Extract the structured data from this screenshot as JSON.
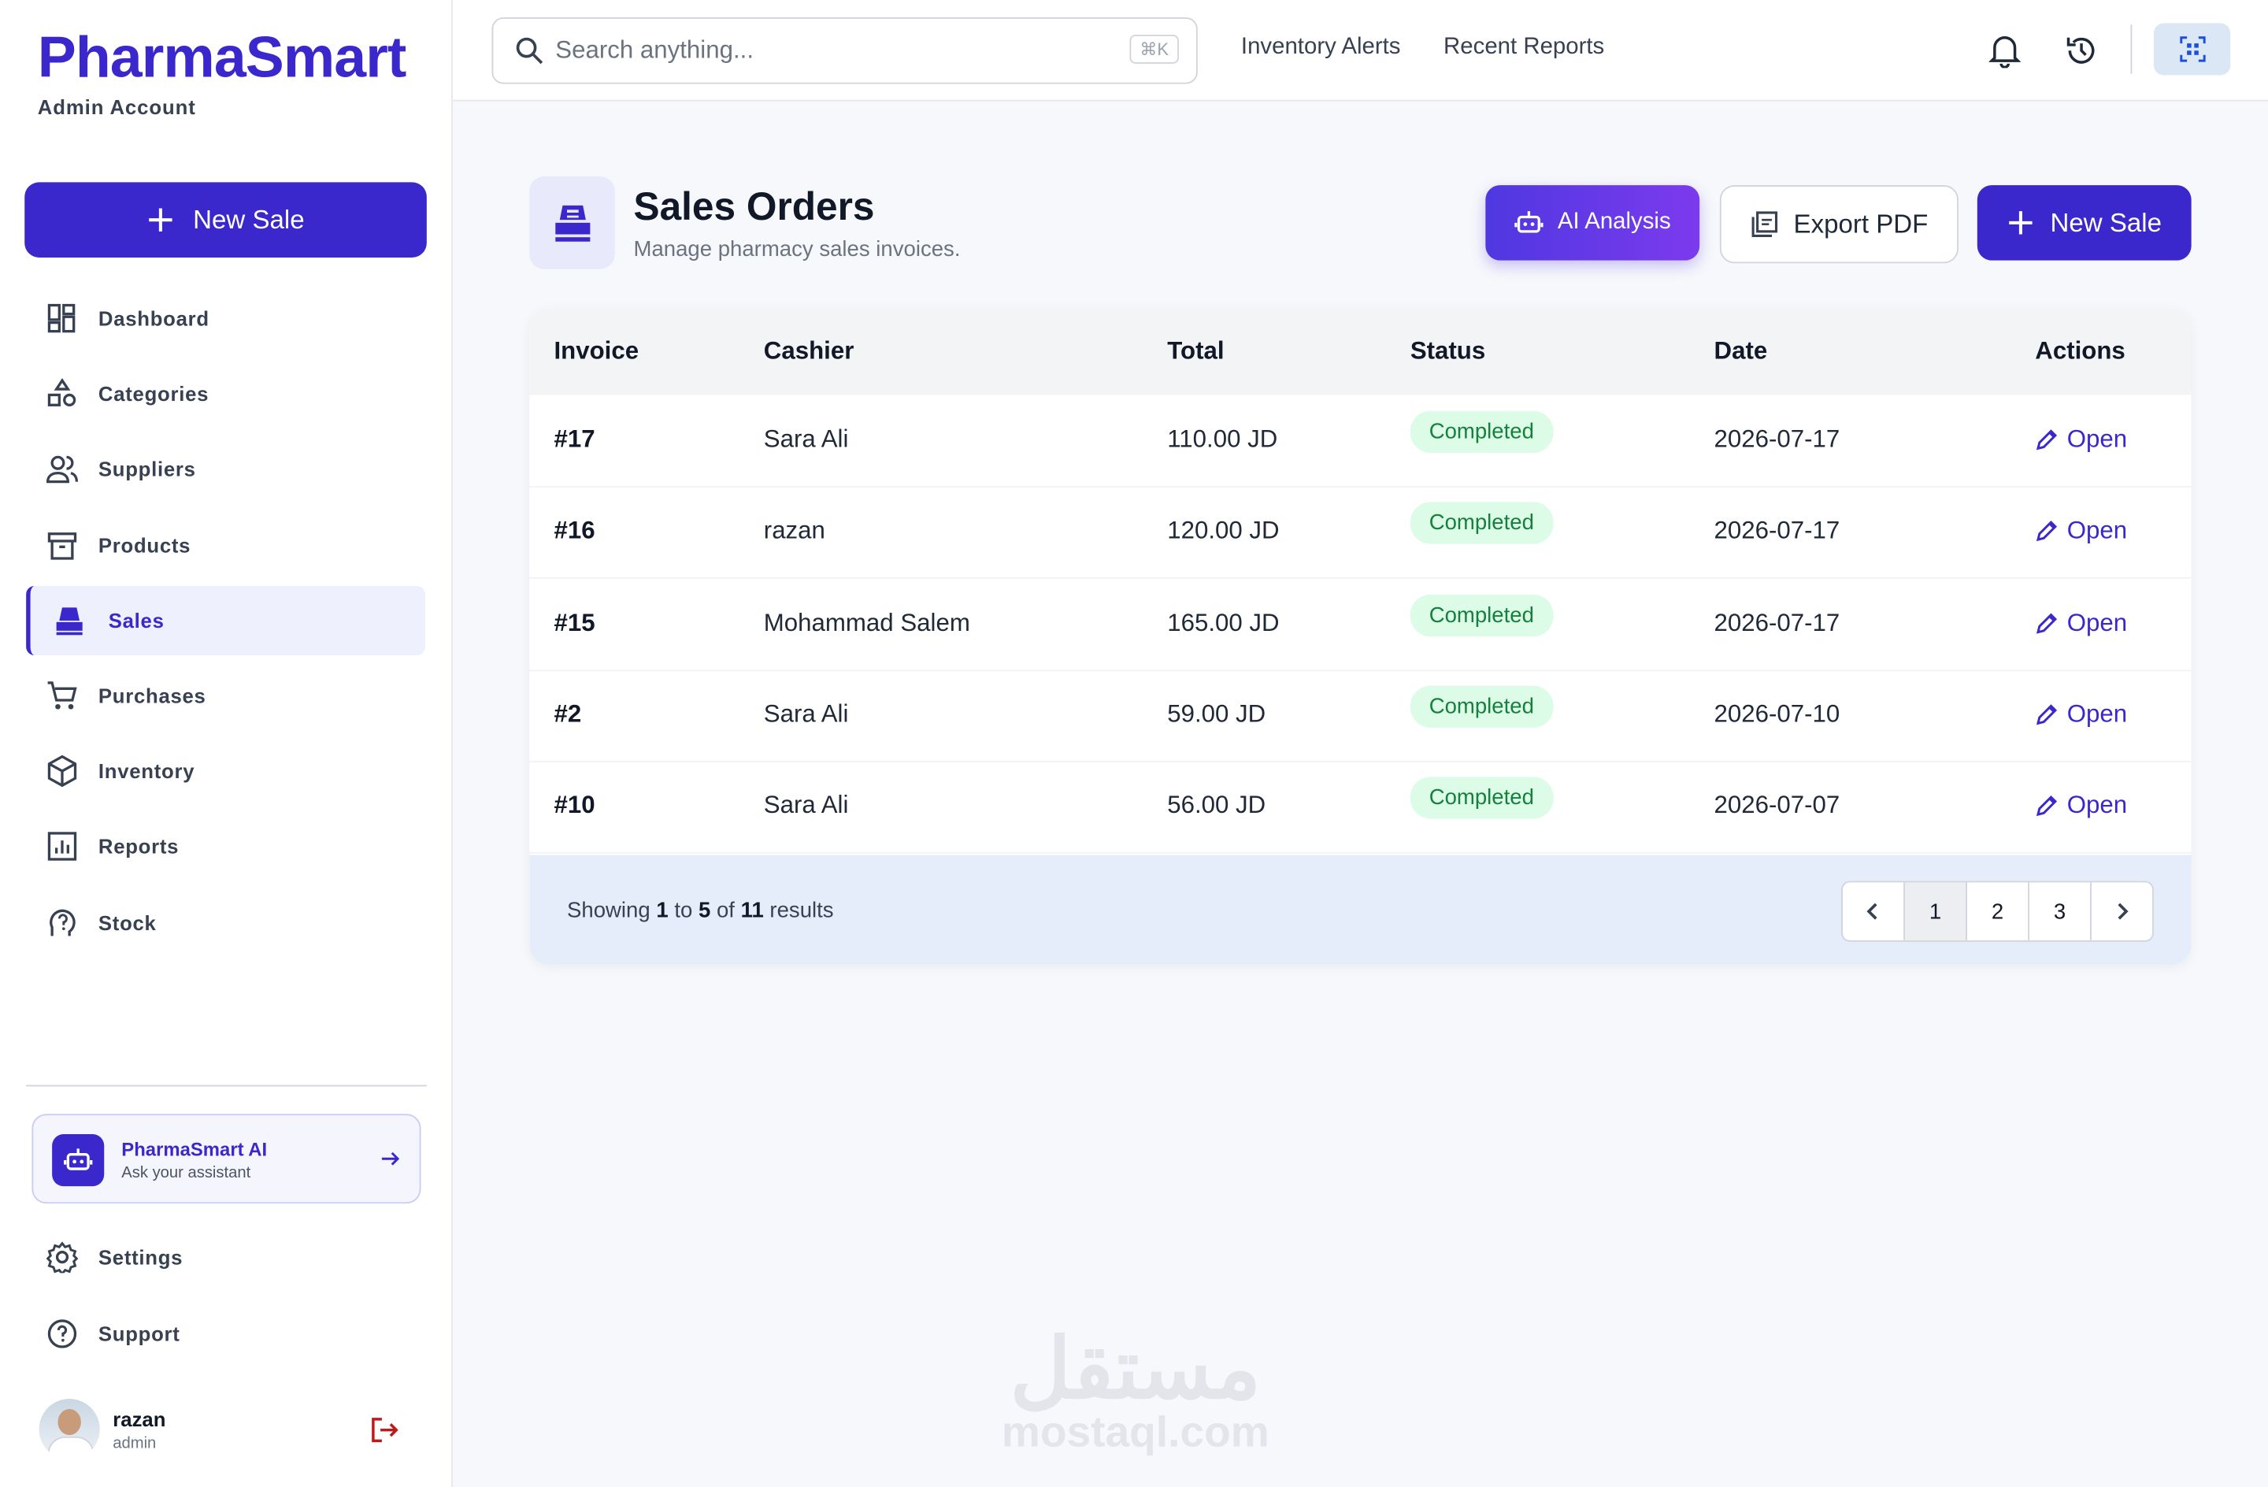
{
  "sidebar": {
    "brand": "PharmaSmart",
    "account": "Admin Account",
    "new_sale": "New Sale",
    "nav": [
      "Dashboard",
      "Categories",
      "Suppliers",
      "Products",
      "Sales",
      "Purchases",
      "Inventory",
      "Reports",
      "Stock"
    ],
    "ai_card": {
      "title": "PharmaSmart AI",
      "subtitle": "Ask your assistant"
    },
    "bottom_nav": [
      "Settings",
      "Support"
    ],
    "user": {
      "name": "razan",
      "role": "admin"
    }
  },
  "topbar": {
    "search_placeholder": "Search anything...",
    "shortcut": "⌘K",
    "links": [
      "Inventory Alerts",
      "Recent Reports"
    ]
  },
  "header": {
    "title": "Sales Orders",
    "subtitle": "Manage pharmacy sales invoices.",
    "buttons": [
      "AI Analysis",
      "Export PDF",
      "New Sale"
    ]
  },
  "table": {
    "columns": [
      "Invoice",
      "Cashier",
      "Total",
      "Status",
      "Date",
      "Actions"
    ],
    "rows": [
      [
        "#17",
        "Sara Ali",
        "110.00 JD",
        "Completed",
        "2026-07-17",
        "Open"
      ],
      [
        "#16",
        "razan",
        "120.00 JD",
        "Completed",
        "2026-07-17",
        "Open"
      ],
      [
        "#15",
        "Mohammad Salem",
        "165.00 JD",
        "Completed",
        "2026-07-17",
        "Open"
      ],
      [
        "#2",
        "Sara Ali",
        "59.00 JD",
        "Completed",
        "2026-07-10",
        "Open"
      ],
      [
        "#10",
        "Sara Ali",
        "56.00 JD",
        "Completed",
        "2026-07-07",
        "Open"
      ]
    ]
  },
  "footer": {
    "summary": [
      "Showing",
      "1",
      "to",
      "5",
      "of",
      "11",
      "results"
    ],
    "pages": [
      "1",
      "2",
      "3"
    ]
  },
  "watermark": {
    "arabic": "مستقل",
    "latin": "mostaql.com"
  }
}
